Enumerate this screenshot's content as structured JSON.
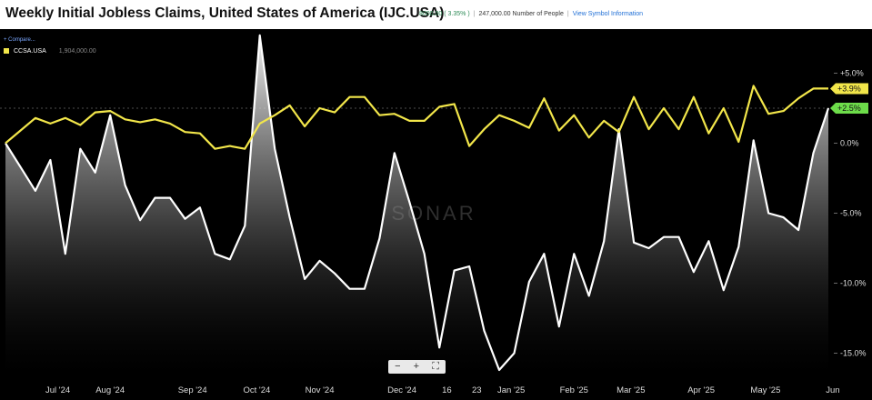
{
  "header": {
    "title": "Weekly Initial Jobless Claims, United States of America (IJC.USA)",
    "change": "8000.00 ( 3.35% )",
    "value": "247,000.00 Number of People",
    "link": "View Symbol Information"
  },
  "legend": {
    "compare_label": "+ Compare...",
    "series_name": "CCSA.USA",
    "series_value": "1,904,000.00"
  },
  "toolbar": {
    "zoom_out": "−",
    "zoom_in": "+",
    "fit": "⛶"
  },
  "watermark": "SONAR",
  "colors": {
    "ijc_line": "#ffffff",
    "ccsa_line": "#f2e64a",
    "ccsa_tag": "#f2e64a",
    "ijc_tag": "#6ddc4a"
  },
  "chart_data": {
    "type": "line",
    "title": "Weekly Initial Jobless Claims, United States of America (IJC.USA)",
    "ylabel": "",
    "ylim": [
      -16.5,
      7.5
    ],
    "y_ticks": [
      "+5.0%",
      "0.0%",
      "-5.0%",
      "-10.0%",
      "-15.0%"
    ],
    "y_tick_values": [
      5,
      0,
      -5,
      -10,
      -15
    ],
    "x_ticks": [
      "Jul '24",
      "Aug '24",
      "Sep '24",
      "Oct '24",
      "Nov '24",
      "Dec '24",
      "16",
      "23",
      "Jan '25",
      "Feb '25",
      "Mar '25",
      "Apr '25",
      "May '25",
      "Jun"
    ],
    "x_tick_weeks": [
      3.5,
      7.0,
      12.5,
      16.8,
      21.0,
      26.5,
      29.5,
      31.5,
      33.8,
      38.0,
      41.8,
      46.5,
      50.8,
      55.3
    ],
    "last_values": [
      {
        "series": "CCSA.USA",
        "value": "+3.9%"
      },
      {
        "series": "IJC.USA",
        "value": "+2.5%"
      }
    ],
    "series": [
      {
        "name": "IJC.USA",
        "color": "#ffffff",
        "fill": true,
        "values": [
          0.0,
          -1.7,
          -3.4,
          -1.2,
          -7.9,
          -0.4,
          -2.1,
          2.0,
          -3.0,
          -5.5,
          -3.9,
          -3.9,
          -5.4,
          -4.6,
          -7.9,
          -8.3,
          -5.9,
          7.7,
          -0.4,
          -5.3,
          -9.7,
          -8.4,
          -9.3,
          -10.4,
          -10.4,
          -6.8,
          -0.7,
          -4.2,
          -7.9,
          -14.6,
          -9.1,
          -8.8,
          -13.4,
          -16.2,
          -15.0,
          -9.9,
          -7.9,
          -13.1,
          -7.9,
          -10.9,
          -7.0,
          1.0,
          -7.1,
          -7.5,
          -6.7,
          -6.7,
          -9.2,
          -7.0,
          -10.5,
          -7.4,
          0.2,
          -5.0,
          -5.3,
          -6.2,
          -0.7,
          2.5
        ]
      },
      {
        "name": "CCSA.USA",
        "color": "#f2e64a",
        "fill": false,
        "values": [
          0.0,
          0.9,
          1.8,
          1.4,
          1.8,
          1.3,
          2.2,
          2.3,
          1.7,
          1.5,
          1.7,
          1.4,
          0.8,
          0.7,
          -0.4,
          -0.2,
          -0.4,
          1.4,
          2.0,
          2.7,
          1.2,
          2.5,
          2.2,
          3.3,
          3.3,
          2.0,
          2.1,
          1.6,
          1.6,
          2.6,
          2.8,
          -0.2,
          1.0,
          2.0,
          1.6,
          1.1,
          3.2,
          0.9,
          2.0,
          0.4,
          1.6,
          0.8,
          3.3,
          1.0,
          2.5,
          1.0,
          3.3,
          0.7,
          2.5,
          0.1,
          4.1,
          2.1,
          2.3,
          3.2,
          3.9,
          3.9
        ]
      }
    ]
  }
}
